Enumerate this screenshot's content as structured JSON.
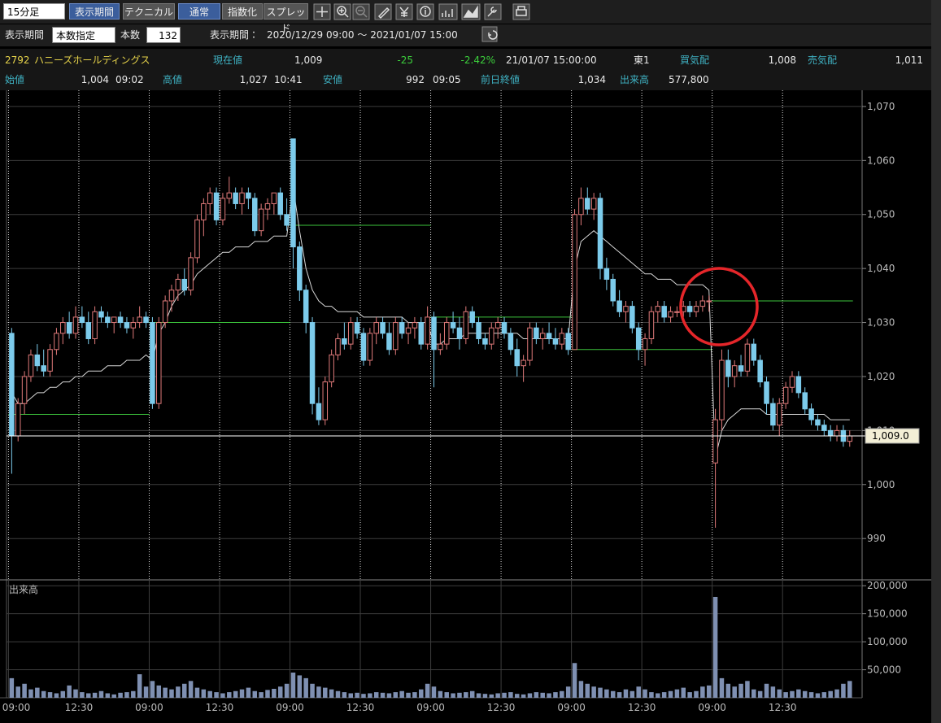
{
  "toolbar": {
    "timeframe": "15分足",
    "buttons": [
      "表示期間",
      "テクニカル",
      "通常",
      "指数化",
      "スプレッド"
    ]
  },
  "settings": {
    "label": "表示期間",
    "mode": "本数指定",
    "count_label": "本数",
    "count": 132,
    "period_label": "表示期間：",
    "period": "2020/12/29 09:00 ～ 2021/01/07 15:00"
  },
  "quote": {
    "code": "2792",
    "name": "ハニーズホールディングス",
    "current_label": "現在値",
    "current": "1,009",
    "change": "-25",
    "change_pct": "-2.42%",
    "time": "21/01/07 15:00:00",
    "market": "東1",
    "bid_label": "買気配",
    "bid": "1,008",
    "ask_label": "売気配",
    "ask": "1,011",
    "open_label": "始値",
    "open": "1,004",
    "open_time": "09:02",
    "high_label": "高値",
    "high": "1,027",
    "high_time": "10:41",
    "low_label": "安値",
    "low": "992",
    "low_time": "09:05",
    "prev_label": "前日終値",
    "prev": "1,034",
    "volume_label": "出来高",
    "volume": "577,800"
  },
  "chart_data": {
    "type": "candlestick",
    "up_color": "#e07a7a",
    "down_color": "#7ccbeb",
    "vwap_color": "#d8d8d8",
    "ref_color": "#3cc43c",
    "volume_color": "#7f90b2",
    "volume_title": "出来高",
    "xticks": [
      {
        "value": 0,
        "label": "09:00"
      },
      {
        "value": 11,
        "label": "12:30"
      },
      {
        "value": 22,
        "label": "09:00"
      },
      {
        "value": 33,
        "label": "12:30"
      },
      {
        "value": 44,
        "label": "09:00"
      },
      {
        "value": 55,
        "label": "12:30"
      },
      {
        "value": 66,
        "label": "09:00"
      },
      {
        "value": 77,
        "label": "12:30"
      },
      {
        "value": 88,
        "label": "09:00"
      },
      {
        "value": 99,
        "label": "12:30"
      },
      {
        "value": 110,
        "label": "09:00"
      },
      {
        "value": 121,
        "label": "12:30"
      }
    ],
    "xlim": [
      -0.3,
      132.3
    ],
    "ylim": [
      982.5,
      1073
    ],
    "yticks": [
      990,
      {
        "value": 1000,
        "label": "1,000"
      },
      {
        "value": 1010,
        "label": "1,010"
      },
      {
        "value": 1020,
        "label": "1,020"
      },
      {
        "value": 1030,
        "label": "1,030"
      },
      {
        "value": 1040,
        "label": "1,040"
      },
      {
        "value": 1050,
        "label": "1,050"
      },
      {
        "value": 1060,
        "label": "1,060"
      },
      {
        "value": 1070,
        "label": "1,070"
      }
    ],
    "y2lim": [
      0,
      209000
    ],
    "y2ticks": [
      {
        "value": 50000,
        "label": "50,000"
      },
      {
        "value": 100000,
        "label": "100,000"
      },
      {
        "value": 150000,
        "label": "150,000"
      },
      {
        "value": 200000,
        "label": "200,000"
      }
    ],
    "last_price": {
      "value": 1009,
      "label": "1,009.0"
    },
    "day_length": 22,
    "prev_close": [
      1013,
      1030,
      1048,
      1031,
      1025,
      1034
    ],
    "candles": [
      [
        1028,
        1029,
        1002,
        1009
      ],
      [
        1009,
        1016,
        1008,
        1015
      ],
      [
        1015,
        1021,
        1013,
        1020
      ],
      [
        1020,
        1025,
        1019,
        1024
      ],
      [
        1024,
        1026,
        1021,
        1022
      ],
      [
        1022,
        1025,
        1020,
        1021
      ],
      [
        1021,
        1026,
        1020,
        1025
      ],
      [
        1025,
        1029,
        1024,
        1028
      ],
      [
        1028,
        1031,
        1026,
        1030
      ],
      [
        1030,
        1032,
        1027,
        1028
      ],
      [
        1028,
        1033,
        1027,
        1031
      ],
      [
        1031,
        1033,
        1029,
        1030
      ],
      [
        1030,
        1032,
        1026,
        1027
      ],
      [
        1027,
        1033,
        1026,
        1032
      ],
      [
        1032,
        1033,
        1030,
        1031
      ],
      [
        1031,
        1032,
        1029,
        1030
      ],
      [
        1030,
        1031,
        1028,
        1031
      ],
      [
        1031,
        1032,
        1029,
        1030
      ],
      [
        1030,
        1031,
        1028,
        1029
      ],
      [
        1029,
        1031,
        1027,
        1030
      ],
      [
        1030,
        1033,
        1029,
        1031
      ],
      [
        1031,
        1032,
        1029,
        1030
      ],
      [
        1030,
        1031,
        1014,
        1015
      ],
      [
        1015,
        1031,
        1014,
        1030
      ],
      [
        1030,
        1035,
        1029,
        1034
      ],
      [
        1034,
        1037,
        1032,
        1036
      ],
      [
        1036,
        1039,
        1034,
        1038
      ],
      [
        1038,
        1040,
        1035,
        1036
      ],
      [
        1036,
        1043,
        1035,
        1042
      ],
      [
        1042,
        1050,
        1041,
        1049
      ],
      [
        1049,
        1053,
        1046,
        1052
      ],
      [
        1052,
        1055,
        1050,
        1054
      ],
      [
        1054,
        1055,
        1048,
        1049
      ],
      [
        1049,
        1054,
        1048,
        1053
      ],
      [
        1053,
        1057,
        1052,
        1054
      ],
      [
        1054,
        1055,
        1051,
        1052
      ],
      [
        1052,
        1055,
        1050,
        1054
      ],
      [
        1054,
        1055,
        1051,
        1053
      ],
      [
        1053,
        1054,
        1046,
        1047
      ],
      [
        1047,
        1052,
        1046,
        1051
      ],
      [
        1051,
        1053,
        1049,
        1052
      ],
      [
        1052,
        1054,
        1050,
        1054
      ],
      [
        1054,
        1055,
        1049,
        1050
      ],
      [
        1050,
        1053,
        1047,
        1048
      ],
      [
        1064,
        1064,
        1040,
        1044
      ],
      [
        1044,
        1045,
        1034,
        1036
      ],
      [
        1036,
        1037,
        1028,
        1030
      ],
      [
        1030,
        1031,
        1013,
        1015
      ],
      [
        1015,
        1018,
        1011,
        1012
      ],
      [
        1012,
        1020,
        1011,
        1019
      ],
      [
        1019,
        1025,
        1018,
        1024
      ],
      [
        1024,
        1028,
        1023,
        1027
      ],
      [
        1027,
        1030,
        1025,
        1026
      ],
      [
        1026,
        1031,
        1025,
        1030
      ],
      [
        1030,
        1031,
        1027,
        1028
      ],
      [
        1028,
        1029,
        1022,
        1023
      ],
      [
        1023,
        1029,
        1022,
        1028
      ],
      [
        1028,
        1031,
        1026,
        1030
      ],
      [
        1030,
        1031,
        1027,
        1028
      ],
      [
        1028,
        1030,
        1024,
        1025
      ],
      [
        1025,
        1031,
        1024,
        1030
      ],
      [
        1030,
        1031,
        1027,
        1028
      ],
      [
        1028,
        1030,
        1026,
        1029
      ],
      [
        1029,
        1031,
        1027,
        1030
      ],
      [
        1030,
        1031,
        1025,
        1026
      ],
      [
        1026,
        1033,
        1025,
        1031
      ],
      [
        1031,
        1032,
        1018,
        1025
      ],
      [
        1025,
        1028,
        1024,
        1026
      ],
      [
        1026,
        1031,
        1025,
        1030
      ],
      [
        1030,
        1032,
        1028,
        1029
      ],
      [
        1029,
        1031,
        1025,
        1027
      ],
      [
        1027,
        1033,
        1026,
        1032
      ],
      [
        1032,
        1033,
        1029,
        1030
      ],
      [
        1030,
        1031,
        1026,
        1027
      ],
      [
        1027,
        1028,
        1025,
        1026
      ],
      [
        1026,
        1030,
        1025,
        1029
      ],
      [
        1029,
        1031,
        1027,
        1030
      ],
      [
        1030,
        1031,
        1027,
        1028
      ],
      [
        1028,
        1029,
        1024,
        1025
      ],
      [
        1025,
        1027,
        1020,
        1022
      ],
      [
        1022,
        1024,
        1019,
        1023
      ],
      [
        1023,
        1030,
        1022,
        1029
      ],
      [
        1029,
        1030,
        1026,
        1027
      ],
      [
        1027,
        1029,
        1025,
        1028
      ],
      [
        1028,
        1030,
        1026,
        1027
      ],
      [
        1027,
        1029,
        1025,
        1026
      ],
      [
        1026,
        1029,
        1025,
        1028
      ],
      [
        1028,
        1029,
        1024,
        1025
      ],
      [
        1025,
        1051,
        1025,
        1050
      ],
      [
        1050,
        1055,
        1048,
        1053
      ],
      [
        1053,
        1055,
        1050,
        1051
      ],
      [
        1051,
        1054,
        1049,
        1053
      ],
      [
        1053,
        1054,
        1038,
        1040
      ],
      [
        1040,
        1042,
        1036,
        1038
      ],
      [
        1038,
        1039,
        1033,
        1034
      ],
      [
        1034,
        1036,
        1031,
        1032
      ],
      [
        1032,
        1034,
        1030,
        1033
      ],
      [
        1033,
        1034,
        1028,
        1029
      ],
      [
        1029,
        1030,
        1023,
        1025
      ],
      [
        1025,
        1028,
        1022,
        1027
      ],
      [
        1027,
        1033,
        1026,
        1032
      ],
      [
        1032,
        1034,
        1030,
        1033
      ],
      [
        1033,
        1034,
        1030,
        1031
      ],
      [
        1031,
        1033,
        1030,
        1032
      ],
      [
        1032,
        1033,
        1031,
        1032
      ],
      [
        1032,
        1034,
        1031,
        1033
      ],
      [
        1033,
        1034,
        1031,
        1032
      ],
      [
        1032,
        1034,
        1031,
        1033
      ],
      [
        1033,
        1035,
        1032,
        1034
      ],
      [
        1034,
        1035,
        1032,
        1034
      ],
      [
        1004,
        1014,
        992,
        1012
      ],
      [
        1012,
        1025,
        1010,
        1023
      ],
      [
        1023,
        1025,
        1018,
        1020
      ],
      [
        1020,
        1023,
        1018,
        1022
      ],
      [
        1022,
        1024,
        1020,
        1021
      ],
      [
        1021,
        1027,
        1020,
        1026
      ],
      [
        1026,
        1027,
        1022,
        1023
      ],
      [
        1023,
        1024,
        1018,
        1019
      ],
      [
        1019,
        1020,
        1013,
        1015
      ],
      [
        1015,
        1016,
        1010,
        1011
      ],
      [
        1011,
        1016,
        1009,
        1015
      ],
      [
        1015,
        1019,
        1014,
        1018
      ],
      [
        1018,
        1021,
        1017,
        1020
      ],
      [
        1020,
        1021,
        1016,
        1017
      ],
      [
        1017,
        1018,
        1013,
        1014
      ],
      [
        1014,
        1015,
        1011,
        1012
      ],
      [
        1012,
        1013,
        1010,
        1011
      ],
      [
        1011,
        1012,
        1009,
        1010
      ],
      [
        1010,
        1011,
        1008,
        1009
      ],
      [
        1009,
        1011,
        1008,
        1010
      ],
      [
        1010,
        1011,
        1007,
        1008
      ],
      [
        1008,
        1010,
        1007,
        1009
      ]
    ],
    "vwap": [
      1017,
      1015,
      1015,
      1016,
      1017,
      1017,
      1018,
      1018,
      1019,
      1019,
      1020,
      1020,
      1021,
      1021,
      1021,
      1022,
      1022,
      1022,
      1023,
      1023,
      1023,
      1024,
      1023,
      1028,
      1030,
      1033,
      1035,
      1036,
      1037,
      1039,
      1040,
      1041,
      1042,
      1043,
      1043,
      1044,
      1044,
      1044,
      1045,
      1045,
      1045,
      1046,
      1046,
      1046,
      1055,
      1047,
      1040,
      1036,
      1034,
      1033,
      1033,
      1032,
      1032,
      1032,
      1032,
      1031,
      1031,
      1031,
      1031,
      1031,
      1031,
      1031,
      1030,
      1030,
      1030,
      1030,
      1026,
      1026,
      1027,
      1027,
      1027,
      1028,
      1028,
      1028,
      1028,
      1028,
      1028,
      1028,
      1028,
      1028,
      1027,
      1027,
      1027,
      1027,
      1027,
      1027,
      1027,
      1027,
      1040,
      1045,
      1046,
      1047,
      1046,
      1045,
      1044,
      1043,
      1042,
      1041,
      1040,
      1039,
      1039,
      1038,
      1038,
      1038,
      1037,
      1037,
      1037,
      1037,
      1037,
      1036,
      1005,
      1010,
      1012,
      1013,
      1014,
      1014,
      1014,
      1014,
      1013,
      1013,
      1013,
      1013,
      1013,
      1013,
      1013,
      1013,
      1013,
      1013,
      1012,
      1012,
      1012,
      1012
    ],
    "volume": [
      35000,
      20000,
      25000,
      15000,
      18000,
      12000,
      10000,
      8000,
      12000,
      22000,
      15000,
      10000,
      8000,
      9000,
      12000,
      8000,
      6000,
      9000,
      10000,
      12000,
      42000,
      20000,
      30000,
      22000,
      18000,
      15000,
      20000,
      25000,
      30000,
      18000,
      15000,
      12000,
      10000,
      8000,
      10000,
      12000,
      15000,
      18000,
      12000,
      10000,
      14000,
      16000,
      20000,
      25000,
      45000,
      40000,
      35000,
      25000,
      20000,
      18000,
      15000,
      12000,
      10000,
      8000,
      9000,
      7000,
      8000,
      10000,
      9000,
      8000,
      10000,
      12000,
      9000,
      10000,
      15000,
      25000,
      20000,
      12000,
      10000,
      8000,
      9000,
      10000,
      12000,
      8000,
      7000,
      6000,
      8000,
      9000,
      10000,
      7000,
      6000,
      8000,
      10000,
      9000,
      8000,
      10000,
      12000,
      20000,
      62000,
      30000,
      25000,
      20000,
      18000,
      15000,
      12000,
      10000,
      15000,
      12000,
      20000,
      15000,
      10000,
      8000,
      10000,
      12000,
      15000,
      18000,
      10000,
      12000,
      20000,
      22000,
      180000,
      35000,
      25000,
      20000,
      25000,
      30000,
      15000,
      12000,
      25000,
      20000,
      15000,
      10000,
      12000,
      15000,
      12000,
      10000,
      8000,
      10000,
      12000,
      15000,
      25000,
      30000
    ]
  }
}
